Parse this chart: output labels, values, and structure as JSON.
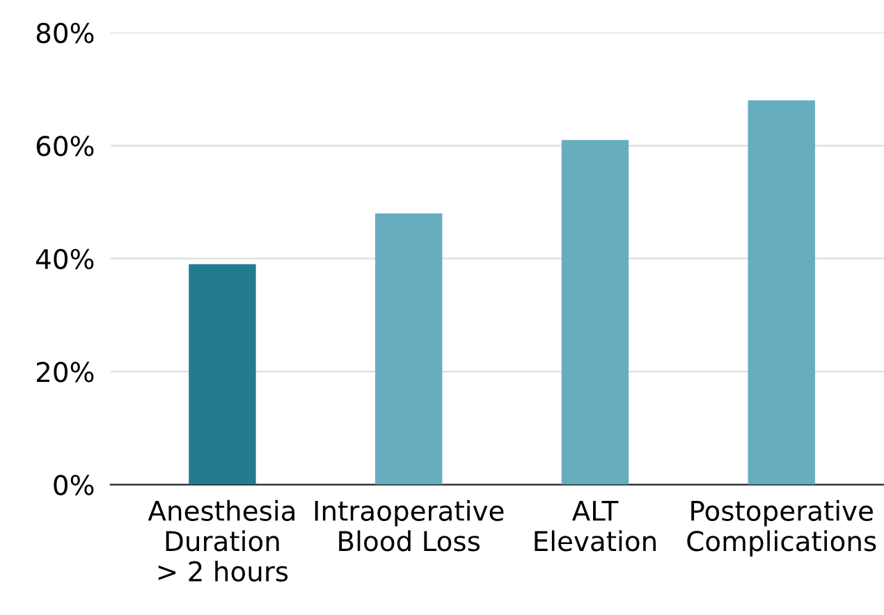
{
  "chart_data": {
    "type": "bar",
    "categories": [
      "Anesthesia\nDuration\n> 2 hours",
      "Intraoperative\nBlood Loss",
      "ALT\nElevation",
      "Postoperative\nComplications"
    ],
    "values": [
      39,
      48,
      61,
      68
    ],
    "colors": [
      "#237b8f",
      "#66adc0",
      "#66adc0",
      "#66adc0"
    ],
    "ylim": [
      0,
      80
    ],
    "yticks": [
      {
        "value": 0,
        "label": "0%"
      },
      {
        "value": 20,
        "label": "20%"
      },
      {
        "value": 40,
        "label": "40%"
      },
      {
        "value": 60,
        "label": "60%"
      },
      {
        "value": 80,
        "label": "80%"
      }
    ],
    "grid": "y"
  }
}
